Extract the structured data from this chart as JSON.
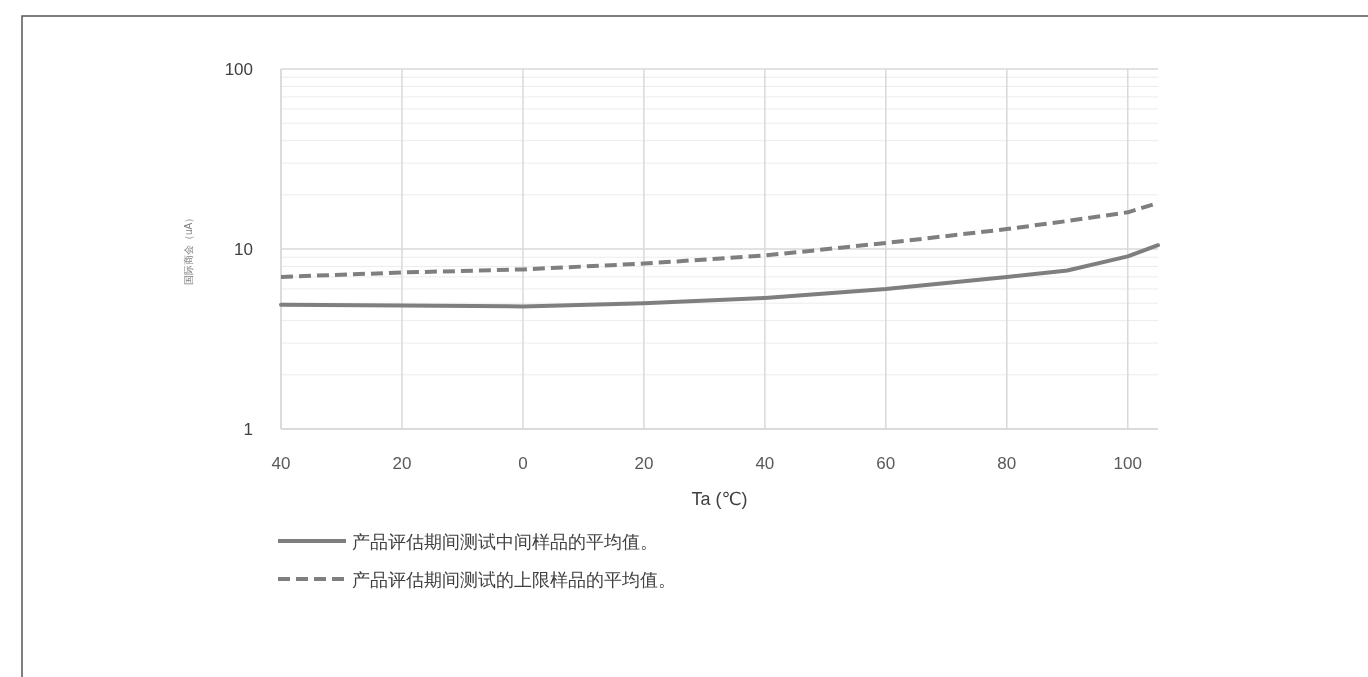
{
  "chart_data": {
    "type": "line",
    "ylabel": "国际商会（uA）",
    "xlabel": "Ta (℃)",
    "x": [
      -40,
      -20,
      0,
      20,
      40,
      60,
      80,
      90,
      100,
      105
    ],
    "series": [
      {
        "name": "产品评估期间测试中间样品的平均值。",
        "color": "#7f7f7f",
        "line_style": "solid",
        "values": [
          4.9,
          4.85,
          4.8,
          5.0,
          5.35,
          6.0,
          7.0,
          7.6,
          9.1,
          10.5
        ]
      },
      {
        "name": "产品评估期间测试的上限样品的平均值。",
        "color": "#7f7f7f",
        "line_style": "dashed",
        "values": [
          7.0,
          7.4,
          7.7,
          8.3,
          9.2,
          10.8,
          12.9,
          14.3,
          16.0,
          18.0
        ]
      }
    ],
    "log": "y",
    "xlim": [
      -40,
      105
    ],
    "ylim": [
      1,
      100
    ],
    "xticks": [
      {
        "value": -40,
        "label": "40"
      },
      {
        "value": -20,
        "label": "20"
      },
      0,
      20,
      40,
      60,
      80,
      100
    ],
    "yticks": [
      1,
      10,
      100
    ],
    "grid": true,
    "legend": "bottom"
  }
}
